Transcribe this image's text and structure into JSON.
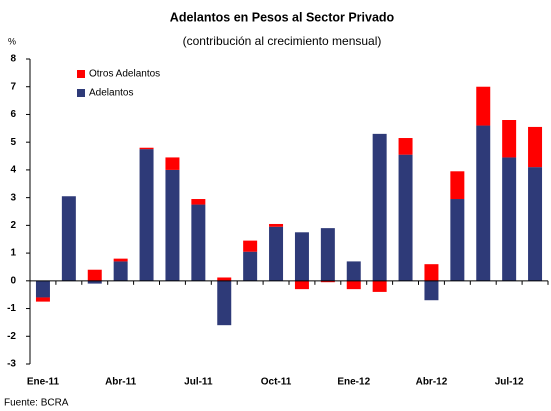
{
  "chart_data": {
    "type": "bar",
    "stacked": true,
    "title": "Adelantos en Pesos al Sector Privado",
    "subtitle": "(contribución al crecimiento mensual)",
    "y_label": "%",
    "source": "Fuente: BCRA",
    "categories": [
      "Ene-11",
      null,
      null,
      "Abr-11",
      null,
      null,
      "Jul-11",
      null,
      null,
      "Oct-11",
      null,
      null,
      "Ene-12",
      null,
      null,
      "Abr-12",
      null,
      null,
      "Jul-12",
      null
    ],
    "series": [
      {
        "name": "Adelantos",
        "color": "#2e3a78",
        "values": [
          -0.6,
          3.05,
          -0.1,
          0.7,
          4.75,
          4.0,
          2.75,
          -1.6,
          1.05,
          1.95,
          1.75,
          1.9,
          0.7,
          5.3,
          4.55,
          -0.7,
          2.95,
          5.6,
          4.45,
          4.1
        ]
      },
      {
        "name": "Otros Adelantos",
        "color": "#ff0000",
        "values": [
          -0.15,
          0,
          0.4,
          0.1,
          0.05,
          0.45,
          0.2,
          0.12,
          0.4,
          0.1,
          -0.3,
          -0.05,
          -0.3,
          -0.4,
          0.6,
          0.6,
          1.0,
          1.4,
          1.35,
          1.45
        ]
      }
    ],
    "ylim": [
      -3,
      8
    ],
    "yticks": [
      -3,
      -2,
      -1,
      0,
      1,
      2,
      3,
      4,
      5,
      6,
      7,
      8
    ],
    "legend": "upper left"
  }
}
